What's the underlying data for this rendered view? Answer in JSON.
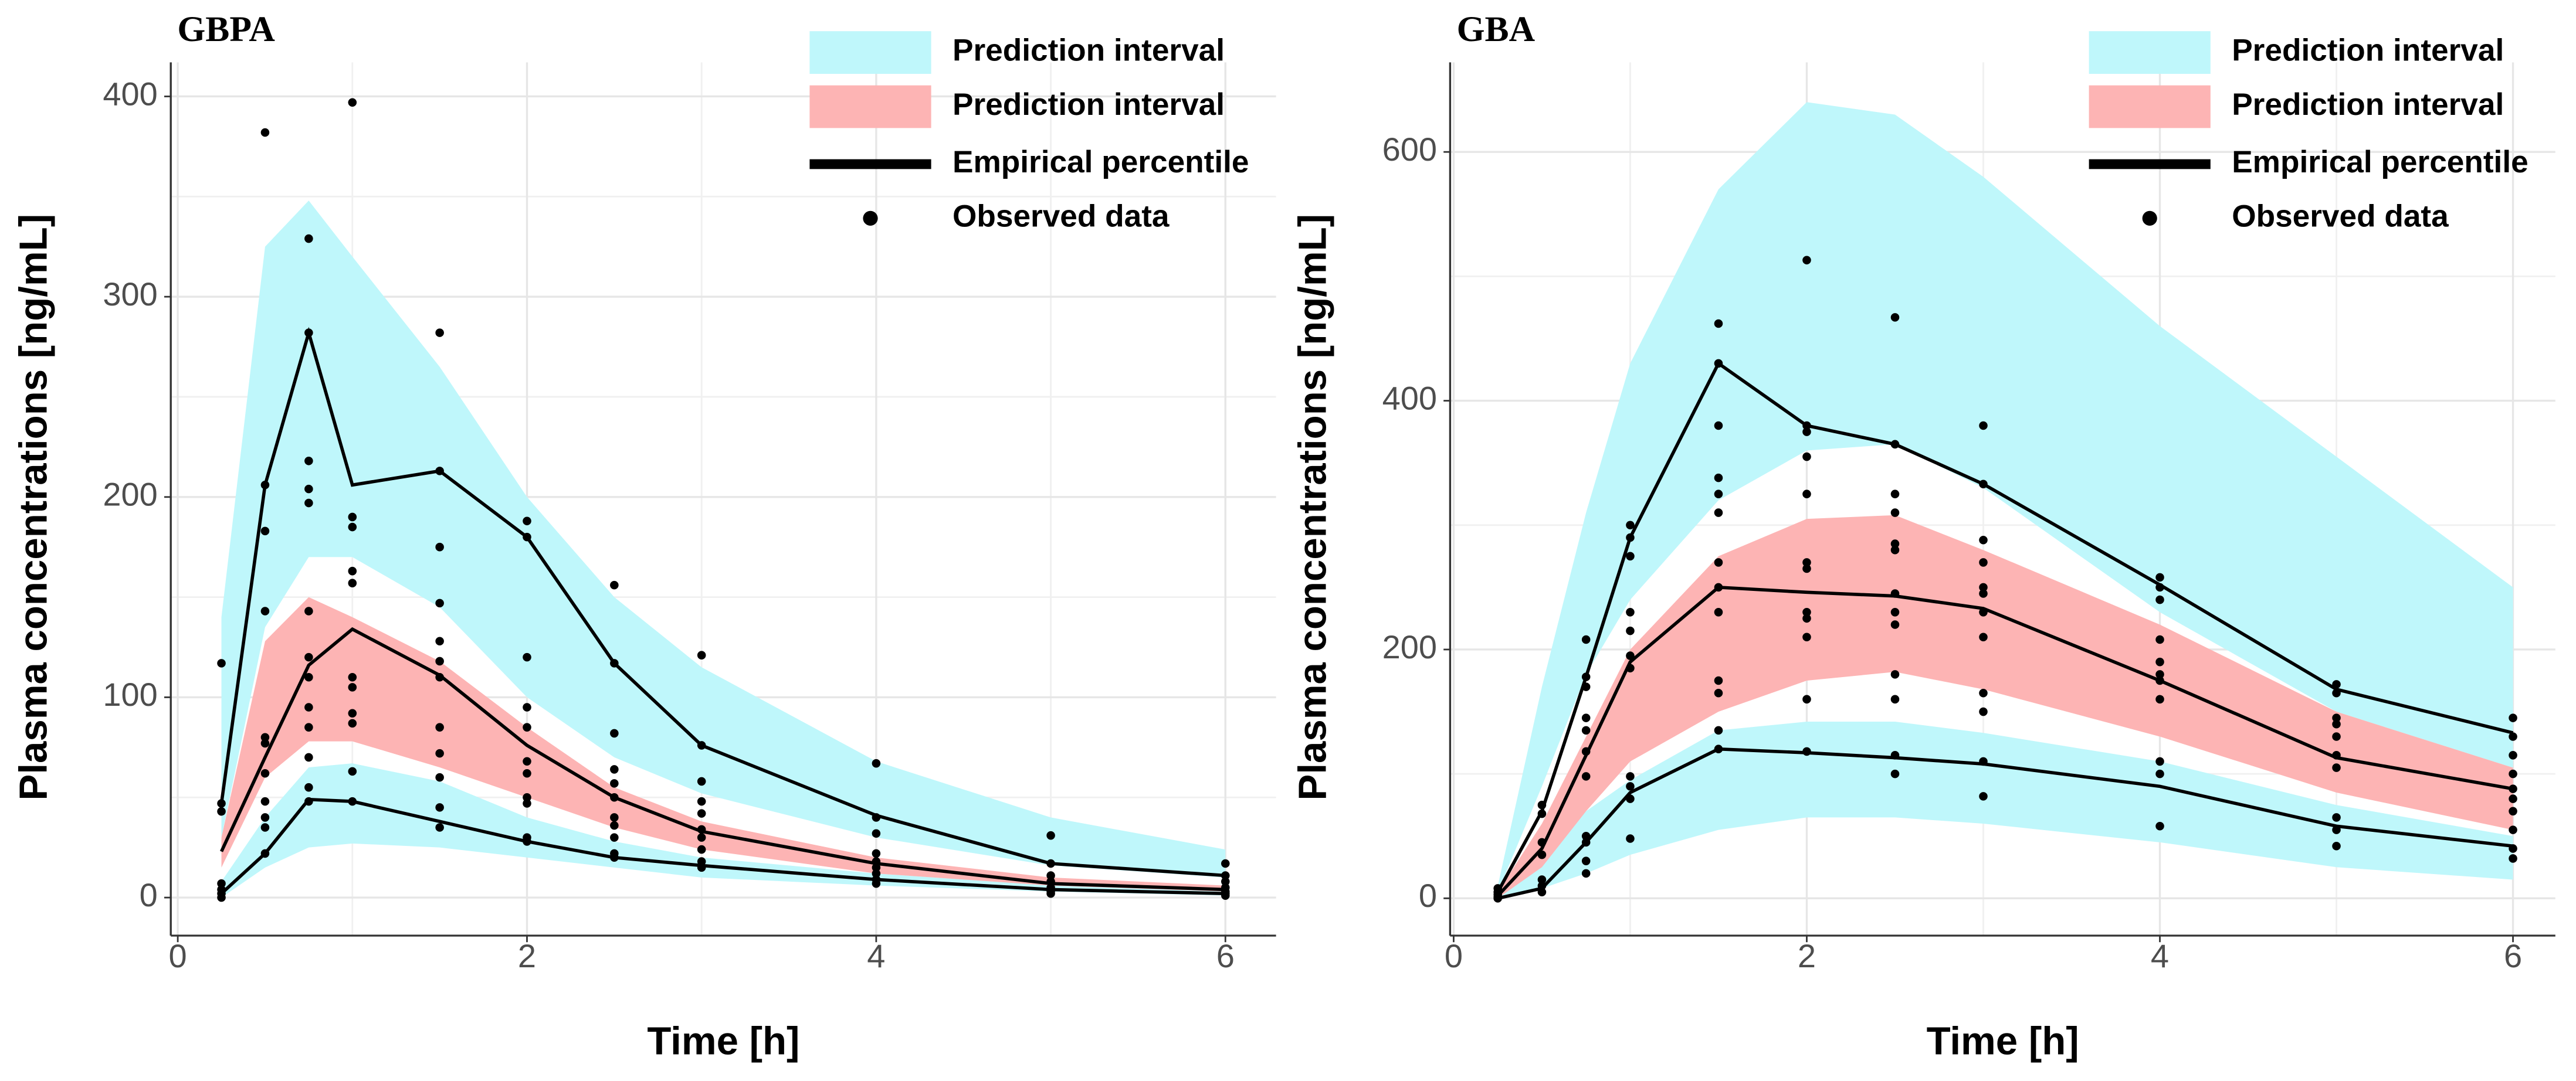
{
  "chart_data": [
    {
      "type": "vpc",
      "title": "GBPA",
      "xlabel": "Time [h]",
      "ylabel": "Plasma concentrations [ng/mL]",
      "xlim": [
        -0.04,
        6.29
      ],
      "ylim": [
        -19,
        417
      ],
      "xticks": [
        0,
        2,
        4,
        6
      ],
      "yticks": [
        0,
        100,
        200,
        300,
        400
      ],
      "grid": true,
      "minor_grid": true,
      "x": [
        0.25,
        0.5,
        0.75,
        1,
        1.5,
        2,
        2.5,
        3,
        4,
        5,
        6
      ],
      "intervals": [
        {
          "name": "Prediction interval",
          "color": "#bff7fb",
          "bands": [
            {
              "lower": [
                30,
                135,
                170,
                170,
                145,
                100,
                70,
                52,
                30,
                16,
                10
              ],
              "upper": [
                140,
                325,
                348,
                320,
                265,
                200,
                150,
                115,
                68,
                40,
                24
              ]
            },
            {
              "lower": [
                0,
                15,
                25,
                27,
                25,
                20,
                15,
                10,
                6,
                3,
                1
              ],
              "upper": [
                8,
                40,
                65,
                67,
                58,
                40,
                28,
                20,
                12,
                6,
                4
              ]
            }
          ]
        },
        {
          "name": "Prediction interval",
          "color": "#fdb4b4",
          "bands": [
            {
              "lower": [
                15,
                60,
                78,
                78,
                65,
                50,
                35,
                24,
                12,
                6,
                3
              ],
              "upper": [
                30,
                128,
                150,
                140,
                118,
                85,
                55,
                38,
                20,
                10,
                6
              ]
            }
          ]
        }
      ],
      "percentile": {
        "name": "Empirical percentile",
        "color": "#000000",
        "series": [
          [
            47,
            206,
            282,
            206,
            213,
            180,
            117,
            76,
            41,
            17,
            11
          ],
          [
            23,
            70,
            116,
            134,
            111,
            76,
            50,
            33,
            17,
            7,
            4
          ],
          [
            2,
            22,
            49,
            48,
            38,
            28,
            20,
            16,
            9,
            4,
            2
          ]
        ]
      },
      "observed": {
        "name": "Observed data",
        "color": "#000000",
        "values": [
          [
            117,
            47,
            43,
            7,
            4,
            2,
            0
          ],
          [
            382,
            206,
            183,
            143,
            80,
            77,
            62,
            48,
            40,
            35,
            22
          ],
          [
            329,
            282,
            218,
            204,
            197,
            143,
            120,
            110,
            95,
            85,
            70,
            55,
            48
          ],
          [
            397,
            190,
            185,
            163,
            157,
            110,
            105,
            92,
            87,
            63,
            48
          ],
          [
            282,
            213,
            175,
            147,
            128,
            118,
            110,
            85,
            72,
            60,
            45,
            35
          ],
          [
            188,
            180,
            120,
            95,
            85,
            68,
            62,
            50,
            47,
            30,
            28
          ],
          [
            156,
            117,
            82,
            64,
            57,
            50,
            40,
            36,
            30,
            22,
            20
          ],
          [
            121,
            76,
            58,
            48,
            42,
            34,
            30,
            24,
            18,
            15
          ],
          [
            67,
            40,
            32,
            22,
            18,
            15,
            12,
            9,
            7
          ],
          [
            31,
            17,
            11,
            8,
            5,
            3,
            2
          ],
          [
            17,
            11,
            8,
            5,
            3,
            2,
            1
          ]
        ]
      }
    },
    {
      "type": "vpc",
      "title": "GBA",
      "xlabel": "Time [h]",
      "ylabel": "Plasma concentrations [ng/mL]",
      "xlim": [
        -0.02,
        6.24
      ],
      "ylim": [
        -30,
        672
      ],
      "xticks": [
        0,
        2,
        4,
        6
      ],
      "yticks": [
        0,
        200,
        400,
        600
      ],
      "grid": true,
      "minor_grid": true,
      "x": [
        0.25,
        0.5,
        0.75,
        1,
        1.5,
        2,
        2.5,
        3,
        4,
        5,
        6
      ],
      "intervals": [
        {
          "name": "Prediction interval",
          "color": "#bff7fb",
          "bands": [
            {
              "lower": [
                5,
                90,
                180,
                240,
                320,
                360,
                365,
                330,
                230,
                150,
                105
              ],
              "upper": [
                10,
                170,
                310,
                430,
                570,
                640,
                630,
                580,
                460,
                355,
                250
              ]
            },
            {
              "lower": [
                0,
                8,
                20,
                35,
                55,
                65,
                65,
                60,
                45,
                25,
                15
              ],
              "upper": [
                3,
                30,
                70,
                95,
                135,
                142,
                142,
                133,
                110,
                75,
                50
              ]
            }
          ]
        },
        {
          "name": "Prediction interval",
          "color": "#fdb4b4",
          "bands": [
            {
              "lower": [
                0,
                25,
                70,
                110,
                150,
                175,
                182,
                168,
                130,
                85,
                55
              ],
              "upper": [
                5,
                60,
                130,
                200,
                275,
                305,
                308,
                280,
                220,
                150,
                105
              ]
            }
          ]
        }
      ],
      "percentile": {
        "name": "Empirical percentile",
        "color": "#000000",
        "series": [
          [
            5,
            70,
            178,
            290,
            430,
            380,
            365,
            333,
            252,
            168,
            133
          ],
          [
            2,
            40,
            115,
            190,
            250,
            246,
            243,
            233,
            175,
            113,
            88
          ],
          [
            0,
            8,
            45,
            85,
            120,
            117,
            113,
            108,
            90,
            58,
            42
          ]
        ]
      },
      "observed": {
        "name": "Observed data",
        "color": "#000000",
        "values": [
          [
            8,
            5,
            3,
            1,
            0
          ],
          [
            75,
            68,
            45,
            35,
            15,
            10,
            5
          ],
          [
            208,
            178,
            170,
            145,
            135,
            118,
            98,
            50,
            45,
            30,
            20
          ],
          [
            300,
            290,
            275,
            230,
            215,
            195,
            185,
            98,
            90,
            80,
            48
          ],
          [
            462,
            430,
            380,
            338,
            325,
            310,
            270,
            250,
            230,
            175,
            165,
            135,
            120
          ],
          [
            513,
            380,
            375,
            355,
            325,
            270,
            265,
            230,
            225,
            210,
            160,
            118
          ],
          [
            467,
            365,
            325,
            310,
            285,
            280,
            245,
            230,
            220,
            180,
            160,
            115,
            100
          ],
          [
            380,
            333,
            288,
            270,
            250,
            245,
            230,
            210,
            165,
            150,
            110,
            82
          ],
          [
            258,
            250,
            240,
            208,
            190,
            180,
            175,
            160,
            110,
            100,
            58
          ],
          [
            172,
            165,
            145,
            140,
            130,
            115,
            105,
            65,
            55,
            42
          ],
          [
            145,
            130,
            115,
            100,
            88,
            80,
            70,
            55,
            40,
            32
          ]
        ]
      }
    }
  ]
}
